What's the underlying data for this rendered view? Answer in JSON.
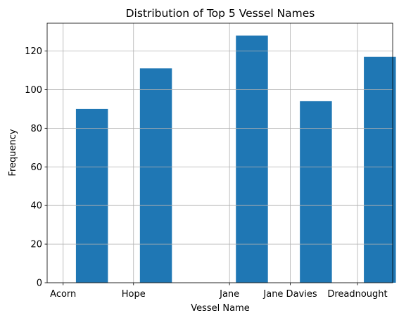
{
  "chart_data": {
    "type": "bar",
    "title": "Distribution of Top 5 Vessel Names",
    "xlabel": "Vessel Name",
    "ylabel": "Frequency",
    "categories": [
      "Acorn",
      "Hope",
      "Jane",
      "Jane Davies",
      "Dreadnought"
    ],
    "bars": [
      {
        "x": 0.2,
        "value": 90
      },
      {
        "x": 1.2,
        "value": 111
      },
      {
        "x": 2.7,
        "value": 128
      },
      {
        "x": 3.7,
        "value": 94
      },
      {
        "x": 4.7,
        "value": 117
      }
    ],
    "bar_width": 0.5,
    "tick_positions": [
      0,
      1.1,
      2.6,
      3.55,
      4.6
    ],
    "xlim": [
      -0.25,
      5.15
    ],
    "ylim": [
      0,
      134.4
    ],
    "y_ticks": [
      0,
      20,
      40,
      60,
      80,
      100,
      120
    ],
    "grid": true,
    "bar_color": "#1f77b4",
    "grid_color": "#b0b0b0"
  }
}
